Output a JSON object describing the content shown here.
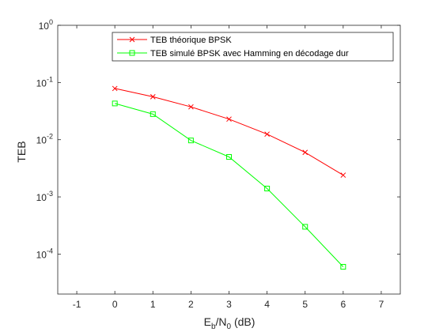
{
  "chart_data": {
    "type": "line",
    "title": "",
    "xlabel": {
      "main": "E",
      "sub1": "b",
      "mid": "/N",
      "sub2": "0",
      "tail": " (dB)"
    },
    "ylabel": "TEB",
    "xlim": [
      -1.5,
      7.5
    ],
    "ylim": [
      2e-05,
      1
    ],
    "yscale": "log",
    "grid": false,
    "legend_position": "top-right",
    "x_ticks": [
      {
        "value": -1,
        "label": "-1"
      },
      {
        "value": 0,
        "label": "0"
      },
      {
        "value": 1,
        "label": "1"
      },
      {
        "value": 2,
        "label": "2"
      },
      {
        "value": 3,
        "label": "3"
      },
      {
        "value": 4,
        "label": "4"
      },
      {
        "value": 5,
        "label": "5"
      },
      {
        "value": 6,
        "label": "6"
      },
      {
        "value": 7,
        "label": "7"
      }
    ],
    "y_ticks": [
      {
        "exp": 0,
        "base": "10",
        "sup": "0"
      },
      {
        "exp": -1,
        "base": "10",
        "sup": "-1"
      },
      {
        "exp": -2,
        "base": "10",
        "sup": "-2"
      },
      {
        "exp": -3,
        "base": "10",
        "sup": "-3"
      },
      {
        "exp": -4,
        "base": "10",
        "sup": "-4"
      }
    ],
    "series": [
      {
        "name": "TEB théorique BPSK",
        "color": "#ff0000",
        "marker": "x",
        "x": [
          0,
          1,
          2,
          3,
          4,
          5,
          6
        ],
        "y": [
          0.0786,
          0.0563,
          0.0375,
          0.0229,
          0.0125,
          0.006,
          0.0024
        ]
      },
      {
        "name": "TEB simulé BPSK avec Hamming en décodage dur",
        "color": "#00ff00",
        "marker": "square",
        "x": [
          0,
          1,
          2,
          3,
          4,
          5,
          6
        ],
        "y": [
          0.043,
          0.028,
          0.0097,
          0.005,
          0.0014,
          0.0003,
          6e-05
        ]
      }
    ]
  }
}
